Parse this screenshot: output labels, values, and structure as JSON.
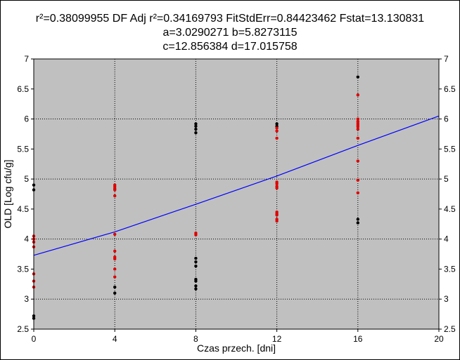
{
  "chart_data": {
    "type": "scatter",
    "title_lines": [
      "r²=0.38099955  DF Adj r²=0.34169793  FitStdErr=0.84423462  Fstat=13.130831",
      "a=3.0290271 b=5.8273115",
      "c=12.856384 d=17.015758"
    ],
    "xlabel": "Czas przech. [dni]",
    "ylabel": "OLD [Log cfu/g]",
    "xlim": [
      0,
      20
    ],
    "ylim": [
      2.5,
      7
    ],
    "x_ticks": [
      0,
      4,
      8,
      12,
      16,
      20
    ],
    "y_ticks": [
      2.5,
      3,
      3.5,
      4,
      4.5,
      5,
      5.5,
      6,
      6.5,
      7
    ],
    "grid": true,
    "series": [
      {
        "color": "#000000",
        "points": [
          [
            0,
            4.9
          ],
          [
            0,
            4.82
          ],
          [
            0,
            2.72
          ],
          [
            0,
            2.68
          ],
          [
            4,
            3.2
          ],
          [
            4,
            3.1
          ],
          [
            8,
            5.92
          ],
          [
            8,
            5.88
          ],
          [
            8,
            5.83
          ],
          [
            8,
            5.77
          ],
          [
            8,
            3.68
          ],
          [
            8,
            3.62
          ],
          [
            8,
            3.55
          ],
          [
            8,
            3.33
          ],
          [
            8,
            3.3
          ],
          [
            8,
            3.22
          ],
          [
            8,
            3.17
          ],
          [
            12,
            5.92
          ],
          [
            12,
            5.88
          ],
          [
            16,
            6.7
          ],
          [
            16,
            4.33
          ],
          [
            16,
            4.27
          ]
        ]
      },
      {
        "color": "#e00000",
        "points": [
          [
            0,
            4.05
          ],
          [
            0,
            4.0
          ],
          [
            0,
            3.95
          ],
          [
            0,
            3.87
          ],
          [
            0,
            3.42
          ],
          [
            0,
            3.3
          ],
          [
            0,
            3.2
          ],
          [
            4,
            4.9
          ],
          [
            4,
            4.87
          ],
          [
            4,
            4.84
          ],
          [
            4,
            4.82
          ],
          [
            4,
            4.72
          ],
          [
            4,
            4.08
          ],
          [
            4,
            3.8
          ],
          [
            4,
            3.7
          ],
          [
            4,
            3.67
          ],
          [
            4,
            3.5
          ],
          [
            4,
            3.37
          ],
          [
            8,
            4.1
          ],
          [
            8,
            4.07
          ],
          [
            12,
            5.85
          ],
          [
            12,
            5.8
          ],
          [
            12,
            5.68
          ],
          [
            12,
            4.95
          ],
          [
            12,
            4.92
          ],
          [
            12,
            4.88
          ],
          [
            12,
            4.85
          ],
          [
            12,
            4.45
          ],
          [
            12,
            4.42
          ],
          [
            12,
            4.4
          ],
          [
            12,
            4.33
          ],
          [
            12,
            4.3
          ],
          [
            16,
            6.4
          ],
          [
            16,
            6.0
          ],
          [
            16,
            5.96
          ],
          [
            16,
            5.93
          ],
          [
            16,
            5.9
          ],
          [
            16,
            5.87
          ],
          [
            16,
            5.83
          ],
          [
            16,
            5.68
          ],
          [
            16,
            5.3
          ],
          [
            16,
            4.98
          ],
          [
            16,
            4.77
          ]
        ]
      }
    ],
    "fit_line": {
      "color": "#0000ff",
      "points": [
        [
          0,
          3.73
        ],
        [
          4,
          4.12
        ],
        [
          8,
          4.58
        ],
        [
          12,
          5.05
        ],
        [
          16,
          5.56
        ],
        [
          20,
          6.05
        ]
      ]
    },
    "plot_background": "#c0c0c0"
  }
}
